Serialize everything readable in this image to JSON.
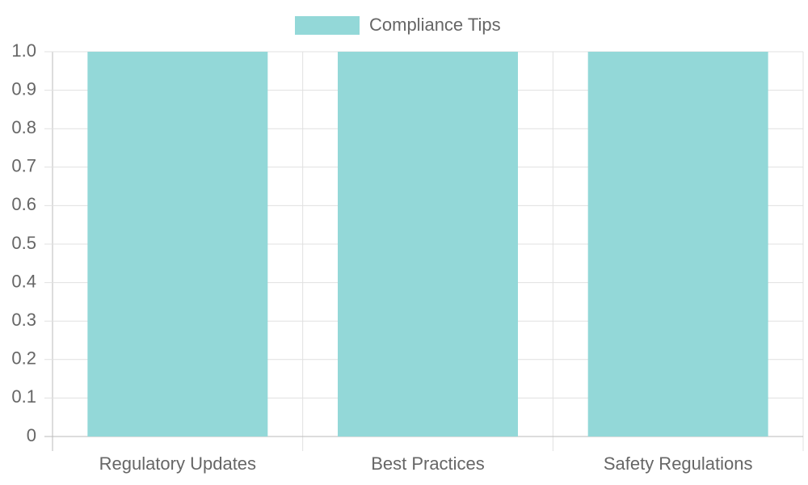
{
  "chart_data": {
    "type": "bar",
    "categories": [
      "Regulatory Updates",
      "Best Practices",
      "Safety Regulations"
    ],
    "series": [
      {
        "name": "Compliance Tips",
        "color": "#93d8d8",
        "values": [
          1,
          1,
          1
        ]
      }
    ],
    "ylim": [
      0,
      1
    ],
    "yticks": [
      0,
      0.1,
      0.2,
      0.3,
      0.4,
      0.5,
      0.6,
      0.7,
      0.8,
      0.9,
      {
        "value": 1,
        "label": "1.0"
      }
    ],
    "grid": true,
    "legend": "top"
  }
}
